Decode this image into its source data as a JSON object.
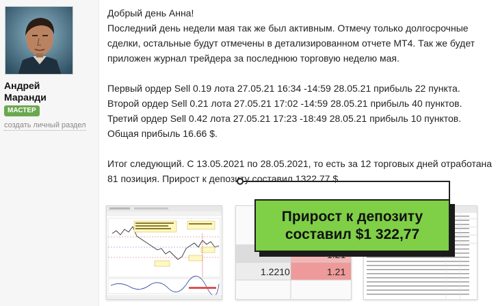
{
  "author": {
    "name_line1": "Андрей",
    "name_line2": "Маранди",
    "badge": "МАСТЕР",
    "create_section_link": "создать личный раздел"
  },
  "post": {
    "greeting": "Добрый день Анна!",
    "para1_line1": "Последний день недели мая так же был активным. Отмечу только долгосрочные",
    "para1_line2": "сделки, остальные будут отмечены в детализированном отчете МТ4. Так же будет",
    "para1_line3": "приложен журнал трейдера за последнюю торговую неделю мая.",
    "order1": "Первый ордер Sell 0.19 лота 27.05.21 16:34 -14:59 28.05.21 прибыль 22 пункта.",
    "order2": "Второй ордер Sell 0.21 лота 27.05.21 17:02 -14:59 28.05.21 прибыль 40 пунктов.",
    "order3": "Третий ордер Sell 0.42 лота 27.05.21 17:23 -18:49 28.05.21 прибыль 10 пунктов.",
    "total": "Общая прибыль 16.66 $.",
    "summary_line1": "Итог следующий. С 13.05.2021 по 28.05.2021, то есть за 12 торговых дней отработана",
    "summary_line2": "81 позиция. Прирост к депозиту составил 1322.77 $."
  },
  "callout": {
    "line1": "Прирост к депозиту",
    "line2": "составил $1 322,77"
  },
  "thumb2": {
    "cell_a": "1.21",
    "cell_b": "1.2210",
    "cell_c": "1.21"
  },
  "colors": {
    "callout_bg": "#7fcf47",
    "badge_bg": "#6aa84f"
  }
}
